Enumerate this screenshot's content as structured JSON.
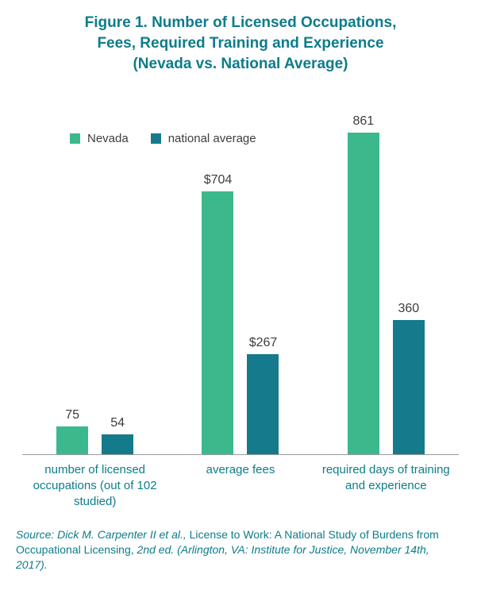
{
  "title": {
    "line1": "Figure 1. Number of Licensed Occupations,",
    "line2": "Fees, Required Training and Experience",
    "line3": "(Nevada vs. National Average)"
  },
  "chart_data": {
    "type": "bar",
    "title": "Figure 1. Number of Licensed Occupations, Fees, Required Training and Experience (Nevada vs. National Average)",
    "categories": [
      "number of licensed occupations (out of 102 studied)",
      "average fees",
      "required days of training and experience"
    ],
    "series": [
      {
        "name": "Nevada",
        "color": "#3bb98c",
        "values": [
          75,
          704,
          861
        ],
        "display_values": [
          "75",
          "$704",
          "861"
        ]
      },
      {
        "name": "national average",
        "color": "#157a8c",
        "values": [
          54,
          267,
          360
        ],
        "display_values": [
          "54",
          "$267",
          "360"
        ]
      }
    ],
    "ylim": [
      0,
      861
    ],
    "grid": false,
    "legend_position": "top-left",
    "xlabel": "",
    "ylabel": ""
  },
  "colors": {
    "title_text": "#0d7c8a",
    "category_text": "#0d7c8a",
    "value_text": "#3d3d3d",
    "axis_line": "#9b9b9b"
  },
  "source": {
    "part1": "Source: Dick M. Carpenter II et al., ",
    "part2": "License to Work: A National Study of Burdens from Occupational Licensing, ",
    "part3": "2nd ed. (Arlington, VA: Institute for Justice, November 14th, 2017)."
  }
}
